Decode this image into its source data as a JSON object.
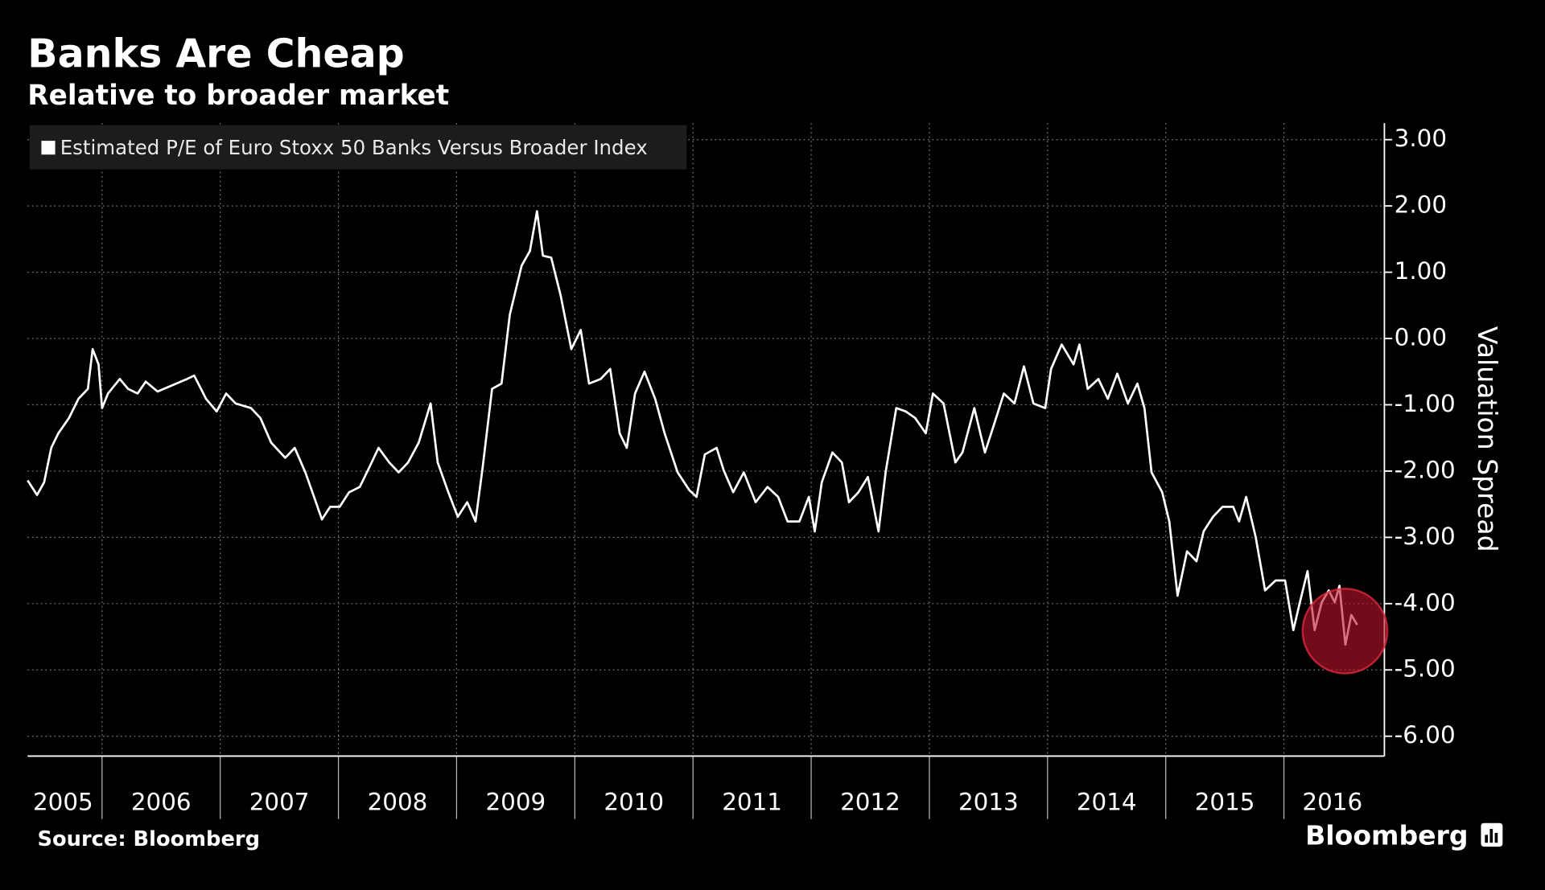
{
  "chart_data": {
    "type": "line",
    "title": "Banks Are Cheap",
    "subtitle": "Relative to broader market",
    "y_label": "Valuation Spread",
    "source": "Source: Bloomberg",
    "brand": "Bloomberg",
    "legend": "top-left",
    "grid": true,
    "xlim": [
      2005.37,
      2016.85
    ],
    "xticks": [
      {
        "value": 2005.67,
        "label": "2005"
      },
      {
        "value": 2006.5,
        "label": "2006"
      },
      {
        "value": 2007.5,
        "label": "2007"
      },
      {
        "value": 2008.5,
        "label": "2008"
      },
      {
        "value": 2009.5,
        "label": "2009"
      },
      {
        "value": 2010.5,
        "label": "2010"
      },
      {
        "value": 2011.5,
        "label": "2011"
      },
      {
        "value": 2012.5,
        "label": "2012"
      },
      {
        "value": 2013.5,
        "label": "2013"
      },
      {
        "value": 2014.5,
        "label": "2014"
      },
      {
        "value": 2015.5,
        "label": "2015"
      },
      {
        "value": 2016.41,
        "label": "2016"
      }
    ],
    "xgrid": [
      2006,
      2007,
      2008,
      2009,
      2010,
      2011,
      2012,
      2013,
      2014,
      2015,
      2016
    ],
    "ylim": [
      -6.3,
      3.25
    ],
    "yticks": [
      {
        "value": 3,
        "label": "3.00"
      },
      {
        "value": 2,
        "label": "2.00"
      },
      {
        "value": 1,
        "label": "1.00"
      },
      {
        "value": 0,
        "label": "0.00"
      },
      {
        "value": -1,
        "label": "-1.00"
      },
      {
        "value": -2,
        "label": "-2.00"
      },
      {
        "value": -3,
        "label": "-3.00"
      },
      {
        "value": -4,
        "label": "-4.00"
      },
      {
        "value": -5,
        "label": "-5.00"
      },
      {
        "value": -6,
        "label": "-6.00"
      }
    ],
    "x": [
      2005.37,
      2005.45,
      2005.51,
      2005.57,
      2005.63,
      2005.72,
      2005.8,
      2005.88,
      2005.92,
      2005.97,
      2006.0,
      2006.05,
      2006.15,
      2006.22,
      2006.3,
      2006.37,
      2006.47,
      2006.59,
      2006.72,
      2006.78,
      2006.88,
      2006.97,
      2007.05,
      2007.13,
      2007.26,
      2007.34,
      2007.43,
      2007.55,
      2007.63,
      2007.72,
      2007.78,
      2007.86,
      2007.93,
      2008.01,
      2008.09,
      2008.18,
      2008.26,
      2008.34,
      2008.43,
      2008.51,
      2008.59,
      2008.68,
      2008.78,
      2008.84,
      2008.93,
      2009.01,
      2009.09,
      2009.16,
      2009.22,
      2009.3,
      2009.38,
      2009.45,
      2009.55,
      2009.62,
      2009.68,
      2009.73,
      2009.8,
      2009.88,
      2009.97,
      2010.05,
      2010.12,
      2010.22,
      2010.3,
      2010.38,
      2010.44,
      2010.51,
      2010.59,
      2010.68,
      2010.76,
      2010.87,
      2010.97,
      2011.03,
      2011.1,
      2011.2,
      2011.26,
      2011.34,
      2011.43,
      2011.53,
      2011.63,
      2011.72,
      2011.8,
      2011.9,
      2011.98,
      2012.03,
      2012.09,
      2012.18,
      2012.26,
      2012.32,
      2012.4,
      2012.48,
      2012.57,
      2012.63,
      2012.72,
      2012.8,
      2012.88,
      2012.97,
      2013.03,
      2013.12,
      2013.22,
      2013.28,
      2013.38,
      2013.47,
      2013.55,
      2013.63,
      2013.72,
      2013.8,
      2013.88,
      2013.98,
      2014.03,
      2014.12,
      2014.22,
      2014.27,
      2014.34,
      2014.43,
      2014.51,
      2014.59,
      2014.68,
      2014.76,
      2014.82,
      2014.88,
      2014.97,
      2015.03,
      2015.1,
      2015.18,
      2015.26,
      2015.32,
      2015.4,
      2015.48,
      2015.57,
      2015.62,
      2015.68,
      2015.76,
      2015.84,
      2015.93,
      2016.01,
      2016.08,
      2016.13,
      2016.2,
      2016.26,
      2016.32,
      2016.38,
      2016.43,
      2016.47,
      2016.52,
      2016.57,
      2016.62
    ],
    "series": [
      {
        "name": "Estimated P/E of Euro Stoxx 50 Banks Versus Broader Index",
        "color": "#ffffff",
        "values": [
          -2.14,
          -2.36,
          -2.17,
          -1.65,
          -1.43,
          -1.2,
          -0.91,
          -0.76,
          -0.16,
          -0.39,
          -1.05,
          -0.83,
          -0.61,
          -0.76,
          -0.83,
          -0.65,
          -0.8,
          -0.71,
          -0.61,
          -0.56,
          -0.91,
          -1.1,
          -0.83,
          -0.98,
          -1.05,
          -1.2,
          -1.57,
          -1.8,
          -1.65,
          -2.02,
          -2.32,
          -2.73,
          -2.54,
          -2.54,
          -2.32,
          -2.24,
          -1.95,
          -1.65,
          -1.87,
          -2.02,
          -1.87,
          -1.57,
          -0.98,
          -1.87,
          -2.32,
          -2.69,
          -2.47,
          -2.76,
          -1.95,
          -0.76,
          -0.68,
          0.36,
          1.1,
          1.32,
          1.92,
          1.25,
          1.22,
          0.65,
          -0.16,
          0.13,
          -0.68,
          -0.61,
          -0.46,
          -1.43,
          -1.65,
          -0.83,
          -0.5,
          -0.91,
          -1.43,
          -2.02,
          -2.29,
          -2.39,
          -1.75,
          -1.65,
          -1.99,
          -2.32,
          -2.02,
          -2.47,
          -2.24,
          -2.39,
          -2.76,
          -2.76,
          -2.39,
          -2.91,
          -2.17,
          -1.72,
          -1.87,
          -2.47,
          -2.32,
          -2.09,
          -2.91,
          -2.02,
          -1.05,
          -1.1,
          -1.2,
          -1.43,
          -0.83,
          -0.98,
          -1.87,
          -1.72,
          -1.05,
          -1.72,
          -1.28,
          -0.83,
          -0.98,
          -0.42,
          -0.98,
          -1.05,
          -0.46,
          -0.09,
          -0.39,
          -0.09,
          -0.76,
          -0.61,
          -0.91,
          -0.53,
          -0.98,
          -0.68,
          -1.05,
          -2.02,
          -2.32,
          -2.76,
          -3.88,
          -3.21,
          -3.36,
          -2.91,
          -2.69,
          -2.54,
          -2.54,
          -2.76,
          -2.39,
          -2.99,
          -3.8,
          -3.65,
          -3.65,
          -4.4,
          -4.02,
          -3.51,
          -4.4,
          -3.98,
          -3.8,
          -3.98,
          -3.73,
          -4.62,
          -4.17,
          -4.32
        ]
      }
    ]
  }
}
